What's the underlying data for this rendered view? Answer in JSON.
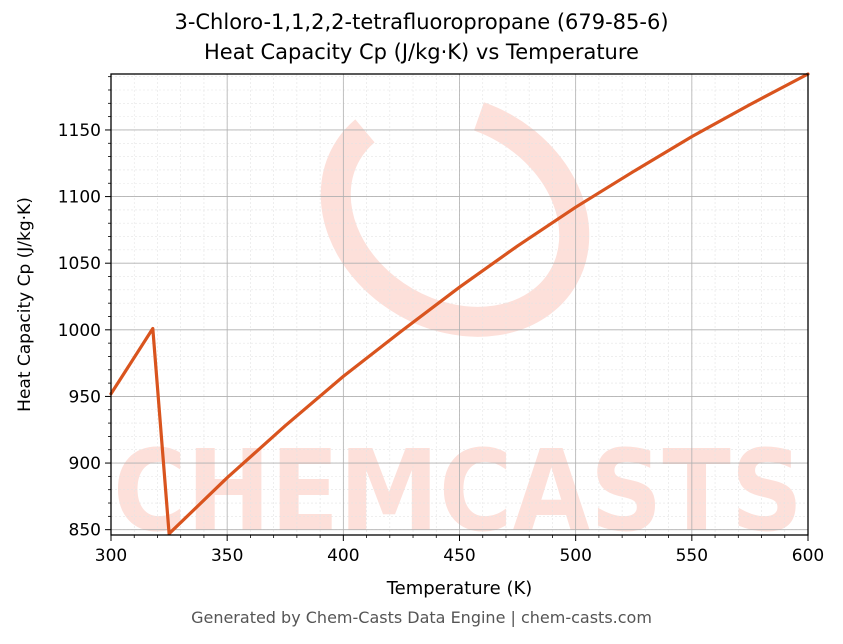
{
  "chart_data": {
    "type": "line",
    "title": "3-Chloro-1,1,2,2-tetrafluoropropane (679-85-6)",
    "subtitle": "Heat Capacity Cp (J/kg·K) vs Temperature",
    "xlabel": "Temperature (K)",
    "ylabel": "Heat Capacity Cp (J/kg·K)",
    "xlim": [
      300,
      600
    ],
    "ylim": [
      846,
      1192
    ],
    "xticks": [
      300,
      350,
      400,
      450,
      500,
      550,
      600
    ],
    "yticks": [
      850,
      900,
      950,
      1000,
      1050,
      1100,
      1150
    ],
    "grid": true,
    "series": [
      {
        "x": [
          300,
          318,
          325,
          350,
          375,
          400,
          425,
          450,
          475,
          500,
          525,
          550,
          575,
          600
        ],
        "y": [
          952,
          1001,
          847,
          889,
          928,
          965,
          999,
          1032,
          1063,
          1092,
          1119,
          1145,
          1169,
          1192
        ],
        "color": "#d9541e"
      }
    ]
  },
  "watermark": {
    "text": "CHEMCASTS",
    "color": "#fde0da"
  },
  "footer": "Generated by Chem-Casts Data Engine | chem-casts.com"
}
